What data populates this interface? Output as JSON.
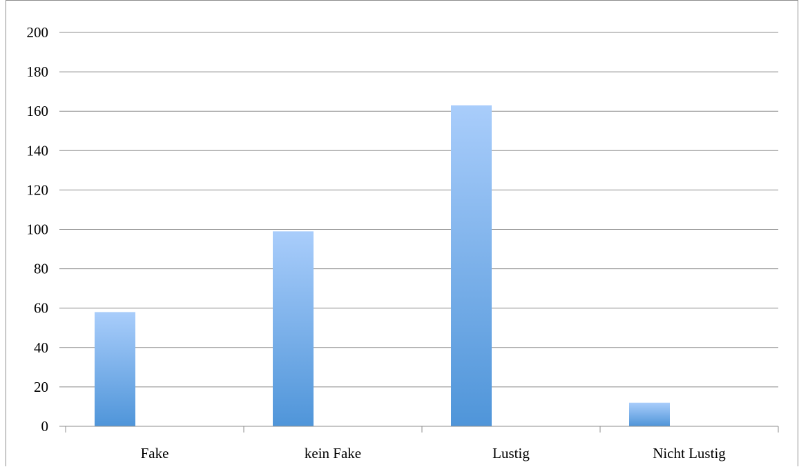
{
  "chart_data": {
    "type": "bar",
    "categories": [
      "Fake",
      "kein Fake",
      "Lustig",
      "Nicht Lustig"
    ],
    "values": [
      58,
      99,
      163,
      12
    ],
    "ylim": [
      0,
      200
    ],
    "yticks": [
      0,
      20,
      40,
      60,
      80,
      100,
      120,
      140,
      160,
      180,
      200
    ],
    "grid": true,
    "legend": "none",
    "colors": {
      "bar_top": "#a9cdfb",
      "bar_bottom": "#4f95d9",
      "grid": "#8c8c8c",
      "axis": "#8c8c8c"
    }
  }
}
